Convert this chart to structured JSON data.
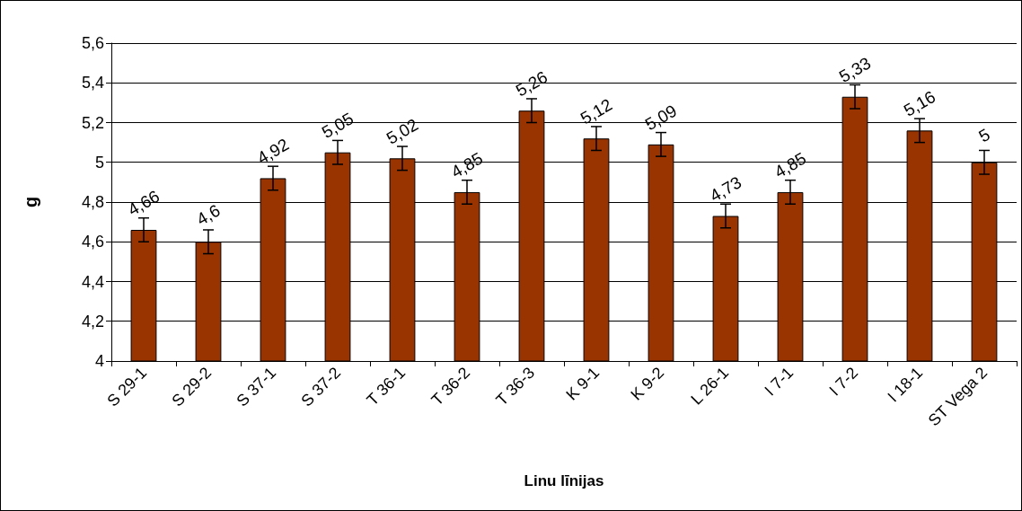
{
  "chart_data": {
    "type": "bar",
    "xlabel": "Linu līnijas",
    "ylabel": "g",
    "categories": [
      "S 29-1",
      "S 29-2",
      "S 37-1",
      "S 37-2",
      "T 36-1",
      "T 36-2",
      "T 36-3",
      "K 9-1",
      "K 9-2",
      "L 26-1",
      "I 7-1",
      "I 7-2",
      "I 18-1",
      "ST Vega 2"
    ],
    "values": [
      4.66,
      4.6,
      4.92,
      5.05,
      5.02,
      4.85,
      5.26,
      5.12,
      5.09,
      4.73,
      4.85,
      5.33,
      5.16,
      5
    ],
    "value_labels": [
      "4,66",
      "4,6",
      "4,92",
      "5,05",
      "5,02",
      "4,85",
      "5,26",
      "5,12",
      "5,09",
      "4,73",
      "4,85",
      "5,33",
      "5,16",
      "5"
    ],
    "errors": [
      0.06,
      0.06,
      0.06,
      0.06,
      0.06,
      0.06,
      0.06,
      0.06,
      0.06,
      0.06,
      0.06,
      0.06,
      0.06,
      0.06
    ],
    "color": "#993300",
    "ylim": [
      4,
      5.6
    ],
    "yticks": [
      4,
      {
        "value": 4.2,
        "label": "4,2"
      },
      {
        "value": 4.4,
        "label": "4,4"
      },
      {
        "value": 4.6,
        "label": "4,6"
      },
      {
        "value": 4.8,
        "label": "4,8"
      },
      5,
      {
        "value": 5.2,
        "label": "5,2"
      },
      {
        "value": 5.4,
        "label": "5,4"
      },
      {
        "value": 5.6,
        "label": "5,6"
      }
    ],
    "grid": "y"
  }
}
